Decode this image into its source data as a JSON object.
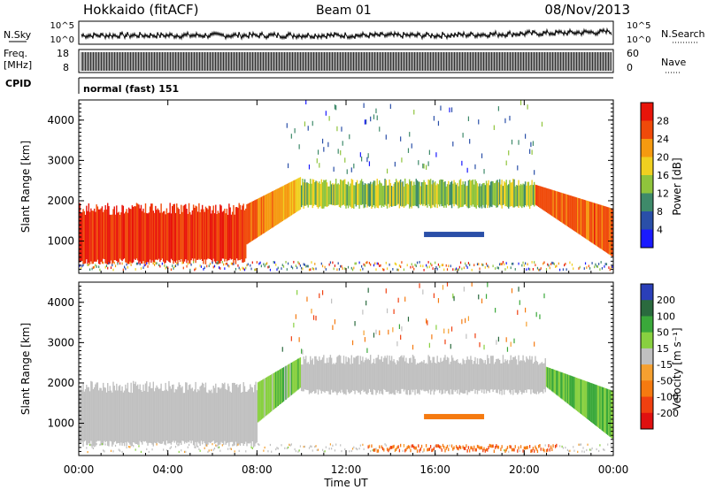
{
  "header": {
    "station": "Hokkaido (fitACF)",
    "beam": "Beam 01",
    "date": "08/Nov/2013"
  },
  "status_panels": {
    "nsky_label": "N.Sky",
    "nsearch_label": "N.Search",
    "noise_ticks_left": [
      "10^5",
      "10^0"
    ],
    "noise_ticks_right": [
      "10^5",
      "10^0"
    ],
    "freq_label_line1": "Freq.",
    "freq_label_line2": "[MHz]",
    "freq_ticks": [
      "18",
      "8"
    ],
    "nave_label": "Nave",
    "nave_ticks": [
      "60",
      "0"
    ],
    "cpid_label": "CPID",
    "cpid_value": "normal (fast) 151"
  },
  "chart_data": [
    {
      "type": "heatmap",
      "title": "",
      "xlabel": "Time UT",
      "ylabel": "Slant Range [km]",
      "x_ticks": [
        "00:00",
        "04:00",
        "08:00",
        "12:00",
        "16:00",
        "20:00",
        "00:00"
      ],
      "xlim_hours": [
        0,
        24
      ],
      "y_ticks": [
        1000,
        2000,
        3000,
        4000
      ],
      "ylim": [
        200,
        4500
      ],
      "colorbar": {
        "label": "Power [dB]",
        "ticks": [
          4,
          8,
          12,
          16,
          20,
          24,
          28
        ],
        "range": [
          0,
          30
        ],
        "colors": [
          "#1a1aff",
          "#2a4fa8",
          "#3e8a6a",
          "#8fc43c",
          "#f0d020",
          "#f59a10",
          "#f04a0a",
          "#e8140a"
        ]
      },
      "features": [
        {
          "desc": "strong echoes",
          "x_range_h": [
            0,
            7.5
          ],
          "y_range_km": [
            400,
            1900
          ],
          "value": 28
        },
        {
          "desc": "rising band",
          "x_range_h": [
            7.5,
            10
          ],
          "y_range_km": [
            1600,
            2600
          ],
          "value": 22
        },
        {
          "desc": "midday band",
          "x_range_h": [
            10,
            20.5
          ],
          "y_range_km": [
            1800,
            2500
          ],
          "value": 12
        },
        {
          "desc": "evening descent",
          "x_range_h": [
            20.5,
            24
          ],
          "y_range_km": [
            600,
            2200
          ],
          "value": 26
        }
      ]
    },
    {
      "type": "heatmap",
      "title": "",
      "xlabel": "Time UT",
      "ylabel": "Slant Range [km]",
      "x_ticks": [
        "00:00",
        "04:00",
        "08:00",
        "12:00",
        "16:00",
        "20:00",
        "00:00"
      ],
      "xlim_hours": [
        0,
        24
      ],
      "y_ticks": [
        1000,
        2000,
        3000,
        4000
      ],
      "ylim": [
        200,
        4500
      ],
      "colorbar": {
        "label": "Velocity [m s⁻¹]",
        "ticks": [
          200,
          100,
          50,
          15,
          -15,
          -50,
          -100,
          -200
        ],
        "colors": [
          "#2a3fb8",
          "#2a6a3e",
          "#3aa83a",
          "#88d040",
          "#c0c0c0",
          "#f5a030",
          "#f57a10",
          "#f04010",
          "#e01010"
        ]
      },
      "features": [
        {
          "desc": "near-zero velocity",
          "x_range_h": [
            0,
            8
          ],
          "y_range_km": [
            400,
            2000
          ],
          "value": 0
        },
        {
          "desc": "positive velocity patch",
          "x_range_h": [
            8.5,
            10
          ],
          "y_range_km": [
            2000,
            2600
          ],
          "value": 30
        },
        {
          "desc": "midday band",
          "x_range_h": [
            10,
            21
          ],
          "y_range_km": [
            1700,
            2700
          ],
          "value": 0
        },
        {
          "desc": "evening positive",
          "x_range_h": [
            21,
            24
          ],
          "y_range_km": [
            600,
            2200
          ],
          "value": 30
        },
        {
          "desc": "near-range negative",
          "x_range_h": [
            14,
            21
          ],
          "y_range_km": [
            250,
            500
          ],
          "value": -60
        }
      ]
    }
  ]
}
